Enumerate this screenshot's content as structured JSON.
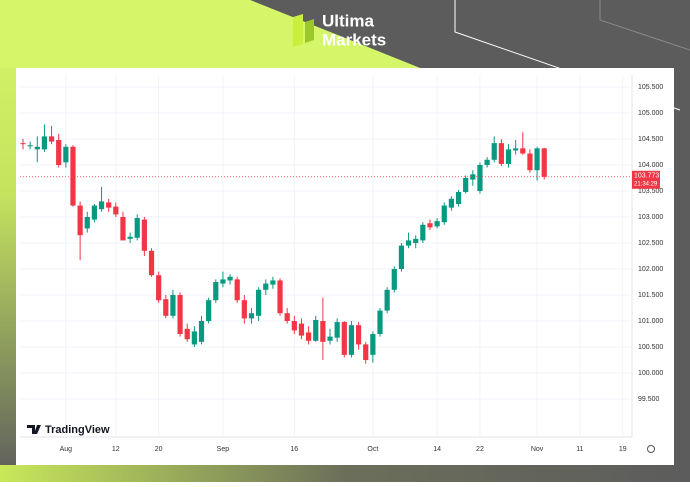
{
  "brand": {
    "line1": "Ultima",
    "line2": "Markets"
  },
  "watermark": "TradingView",
  "chart_data": {
    "type": "candlestick",
    "categories": [
      null,
      null,
      null,
      null,
      null,
      null,
      "Aug",
      null,
      null,
      null,
      null,
      null,
      null,
      "12",
      null,
      null,
      null,
      null,
      null,
      "20",
      null,
      null,
      null,
      null,
      null,
      null,
      null,
      null,
      "Sep",
      null,
      null,
      null,
      null,
      null,
      null,
      null,
      null,
      null,
      "16",
      null,
      null,
      null,
      null,
      null,
      null,
      null,
      null,
      null,
      null,
      "Oct",
      null,
      null,
      null,
      null,
      null,
      null,
      null,
      null,
      "14",
      null,
      null,
      null,
      null,
      null,
      "22",
      null,
      null,
      null,
      null,
      null,
      null,
      null,
      "Nov",
      null,
      null,
      null,
      null,
      null,
      "11",
      null,
      null,
      null,
      null,
      null,
      "19"
    ],
    "open": [
      104.42,
      104.36,
      104.3,
      104.3,
      104.55,
      104.48,
      104.05,
      104.35,
      103.22,
      102.78,
      102.95,
      103.15,
      103.28,
      103.2,
      103.0,
      102.58,
      102.6,
      102.95,
      102.35,
      101.88,
      101.42,
      101.1,
      101.5,
      100.85,
      100.55,
      100.6,
      101.0,
      101.4,
      101.72,
      101.78,
      101.8,
      101.4,
      101.05,
      101.1,
      101.6,
      101.7,
      101.78,
      101.15,
      101.0,
      100.95,
      100.78,
      100.62,
      101.0,
      100.62,
      100.68,
      100.98,
      100.35,
      100.92,
      100.55,
      100.35,
      100.75,
      101.2,
      101.6,
      102.0,
      102.45,
      102.5,
      102.55,
      102.88,
      102.82,
      102.9,
      103.18,
      103.25,
      103.48,
      103.72,
      103.5,
      104.0,
      104.1,
      104.42,
      104.02,
      104.28,
      104.32,
      104.22,
      103.9,
      104.32,
      null,
      null,
      null,
      null,
      null,
      null,
      null,
      null,
      null,
      null,
      null
    ],
    "high": [
      104.5,
      104.45,
      104.55,
      104.78,
      104.75,
      104.6,
      104.4,
      104.38,
      103.3,
      103.1,
      103.25,
      103.58,
      103.35,
      103.28,
      103.1,
      102.7,
      103.05,
      103.0,
      102.4,
      101.95,
      101.5,
      101.6,
      101.55,
      100.95,
      100.9,
      101.1,
      101.45,
      101.8,
      101.95,
      101.9,
      101.85,
      101.5,
      101.25,
      101.65,
      101.8,
      101.85,
      101.82,
      101.25,
      101.1,
      101.05,
      100.9,
      101.1,
      101.45,
      100.85,
      101.05,
      101.0,
      101.0,
      100.98,
      100.6,
      100.8,
      101.25,
      101.65,
      102.05,
      102.5,
      102.7,
      102.65,
      102.9,
      102.95,
      102.98,
      103.28,
      103.4,
      103.52,
      103.8,
      103.9,
      104.05,
      104.15,
      104.55,
      104.5,
      104.4,
      104.48,
      104.63,
      104.3,
      104.35,
      104.33,
      null,
      null,
      null,
      null,
      null,
      null,
      null,
      null,
      null,
      null,
      null
    ],
    "low": [
      104.3,
      104.3,
      104.05,
      104.25,
      104.4,
      103.95,
      103.95,
      103.2,
      102.17,
      102.7,
      102.9,
      103.1,
      103.1,
      103.0,
      102.55,
      102.5,
      102.55,
      102.25,
      101.85,
      101.35,
      101.05,
      101.05,
      100.7,
      100.6,
      100.5,
      100.55,
      100.95,
      101.35,
      101.65,
      101.7,
      101.35,
      100.95,
      100.95,
      101.0,
      101.5,
      101.62,
      101.1,
      100.95,
      100.75,
      100.65,
      100.55,
      100.6,
      100.25,
      100.55,
      100.6,
      100.3,
      100.3,
      100.45,
      100.18,
      100.2,
      100.7,
      101.15,
      101.55,
      101.95,
      102.4,
      102.4,
      102.5,
      102.75,
      102.78,
      102.85,
      103.12,
      103.2,
      103.45,
      103.6,
      103.45,
      103.95,
      104.05,
      103.98,
      103.95,
      104.2,
      104.2,
      103.85,
      103.7,
      103.72,
      null,
      null,
      null,
      null,
      null,
      null,
      null,
      null,
      null,
      null,
      null
    ],
    "close": [
      104.4,
      104.38,
      104.35,
      104.55,
      104.45,
      104.0,
      104.35,
      103.22,
      102.65,
      103.0,
      103.22,
      103.3,
      103.18,
      103.05,
      102.55,
      102.62,
      102.98,
      102.35,
      101.88,
      101.4,
      101.1,
      101.5,
      100.75,
      100.65,
      100.8,
      101.0,
      101.4,
      101.75,
      101.8,
      101.85,
      101.4,
      101.05,
      101.15,
      101.6,
      101.72,
      101.78,
      101.15,
      101.0,
      100.82,
      100.72,
      100.62,
      101.02,
      100.6,
      100.7,
      100.98,
      100.35,
      100.92,
      100.55,
      100.25,
      100.75,
      101.2,
      101.6,
      102.0,
      102.45,
      102.55,
      102.58,
      102.85,
      102.8,
      102.92,
      103.22,
      103.35,
      103.48,
      103.75,
      103.82,
      104.0,
      104.1,
      104.42,
      104.02,
      104.3,
      104.32,
      104.22,
      103.9,
      104.32,
      103.773,
      null,
      null,
      null,
      null,
      null,
      null,
      null,
      null,
      null,
      null,
      null
    ],
    "up_color": "#089981",
    "down_color": "#f23645",
    "last_price": 103.773,
    "countdown": "21:34:29",
    "ylim": [
      98.77,
      105.73
    ],
    "yticks": [
      {
        "value": 99.5,
        "label": "99.500"
      },
      {
        "value": 100,
        "label": "100.000"
      },
      {
        "value": 100.5,
        "label": "100.500"
      },
      {
        "value": 101,
        "label": "101.000"
      },
      {
        "value": 101.5,
        "label": "101.500"
      },
      {
        "value": 102,
        "label": "102.000"
      },
      {
        "value": 102.5,
        "label": "102.500"
      },
      {
        "value": 103,
        "label": "103.000"
      },
      {
        "value": 103.5,
        "label": "103.500"
      },
      {
        "value": 104,
        "label": "104.000"
      },
      {
        "value": 104.5,
        "label": "104.500"
      },
      {
        "value": 105,
        "label": "105.000"
      },
      {
        "value": 105.5,
        "label": "105.500"
      }
    ],
    "grid": true
  }
}
